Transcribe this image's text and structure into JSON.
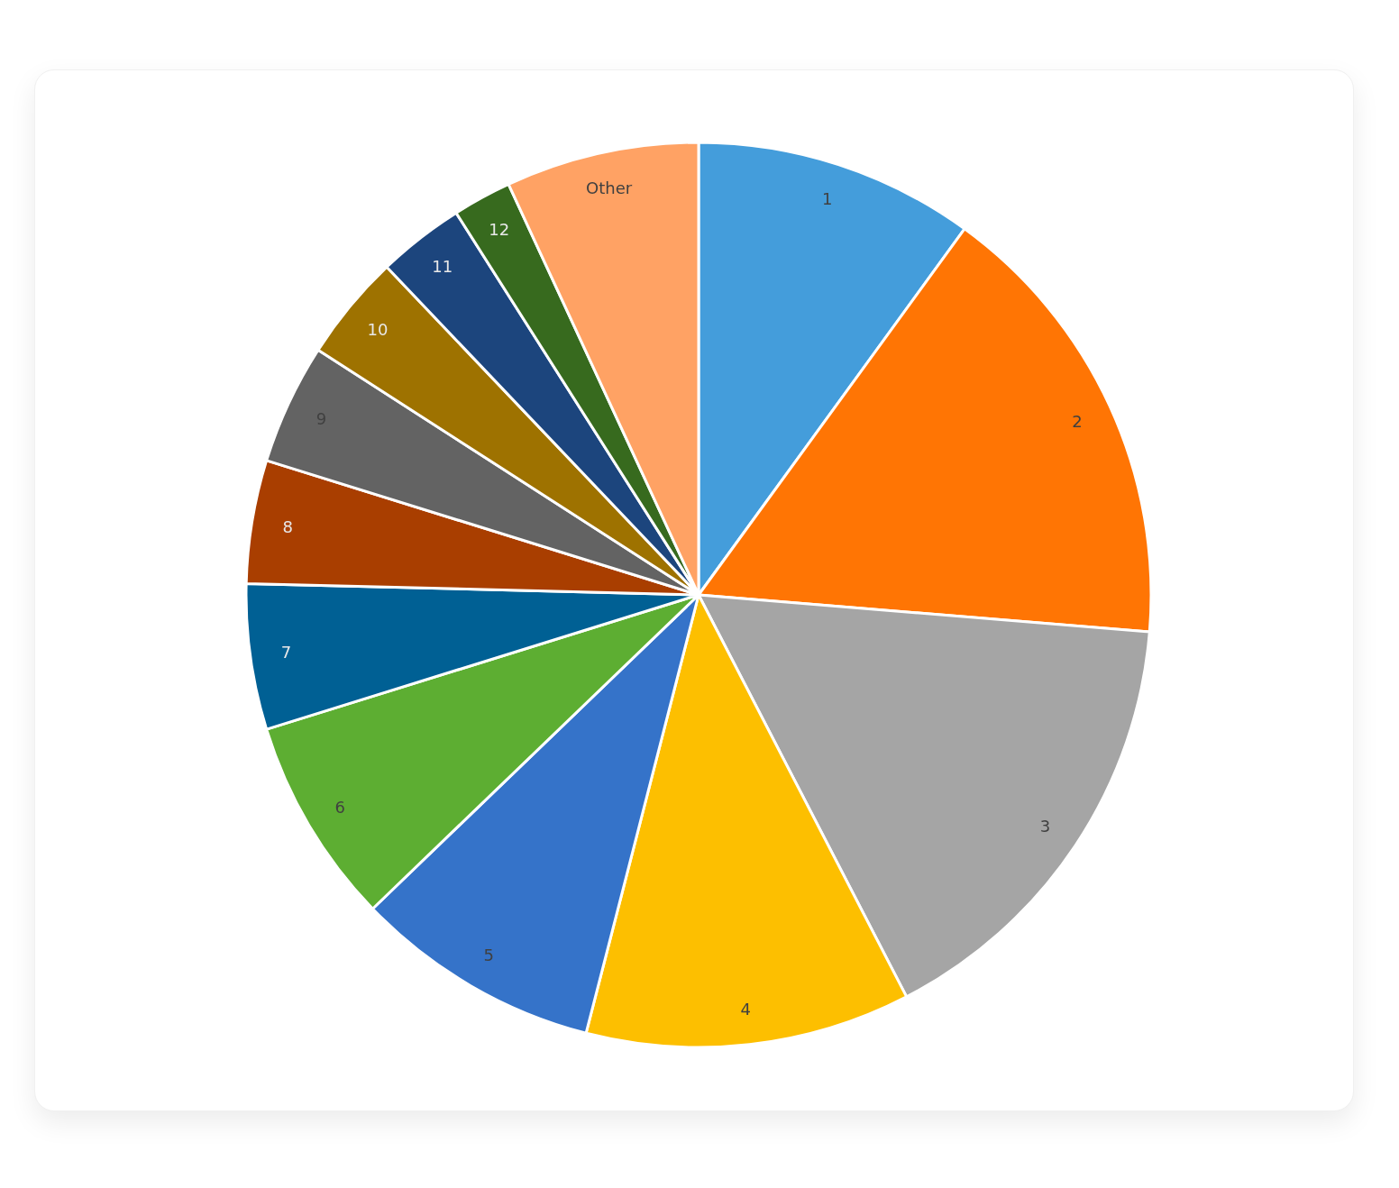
{
  "chart_data": {
    "type": "pie",
    "categories": [
      "1",
      "2",
      "3",
      "4",
      "5",
      "6",
      "7",
      "8",
      "9",
      "10",
      "11",
      "12",
      "Other"
    ],
    "values": [
      10.0,
      16.3,
      16.1,
      11.6,
      8.8,
      7.4,
      5.2,
      4.4,
      4.3,
      3.8,
      3.1,
      2.1,
      6.9
    ],
    "colors": [
      "#449ddb",
      "#ff7504",
      "#a5a5a5",
      "#fdbf00",
      "#3573c9",
      "#5dae32",
      "#006094",
      "#a93e00",
      "#636363",
      "#9e7200",
      "#1c457d",
      "#376a1e",
      "#ffa264"
    ]
  }
}
